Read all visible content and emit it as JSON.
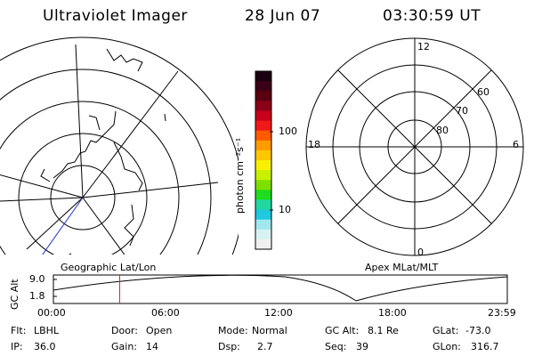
{
  "header": {
    "title": "Ultraviolet Imager",
    "date": "28 Jun 07",
    "time": "03:30:59 UT"
  },
  "colorbar": {
    "unit_label": "photon cm⁻²s⁻¹",
    "tick_100": "100",
    "tick_10": "10",
    "colors": [
      "#1a0010",
      "#3a0018",
      "#5a0010",
      "#8b0018",
      "#c8001c",
      "#f01818",
      "#ff5a00",
      "#ff9b00",
      "#ffc800",
      "#f8f000",
      "#c8f000",
      "#7ee000",
      "#1edc1e",
      "#20d8a0",
      "#20c8e0",
      "#a0e8ee",
      "#d8f2f4",
      "#f0f0f0"
    ]
  },
  "geo_map": {
    "label": "Geographic Lat/Lon"
  },
  "apex_map": {
    "label": "Apex MLat/MLT",
    "mlt_labels": {
      "top": "12",
      "left": "18",
      "right": "6",
      "bottom": "0"
    },
    "lat_labels": [
      "60",
      "70",
      "80"
    ]
  },
  "altitude_plot": {
    "ylabel": "GC Alt",
    "yticks": [
      "9.0",
      "1.8"
    ],
    "xticks": [
      "00:00",
      "06:00",
      "12:00",
      "18:00",
      "23:59"
    ],
    "current_time_fraction": 0.146
  },
  "info": {
    "flt_label": "Flt:",
    "flt_value": "LBHL",
    "door_label": "Door:",
    "door_value": "Open",
    "mode_label": "Mode:",
    "mode_value": "Normal",
    "gcalt_label": "GC Alt:",
    "gcalt_value": "8.1 Re",
    "glat_label": "GLat:",
    "glat_value": "-73.0",
    "ip_label": "IP:",
    "ip_value": "36.0",
    "gain_label": "Gain:",
    "gain_value": "14",
    "dsp_label": "Dsp:",
    "dsp_value": "2.7",
    "seq_label": "Seq:",
    "seq_value": "39",
    "glon_label": "GLon:",
    "glon_value": "316.7"
  }
}
